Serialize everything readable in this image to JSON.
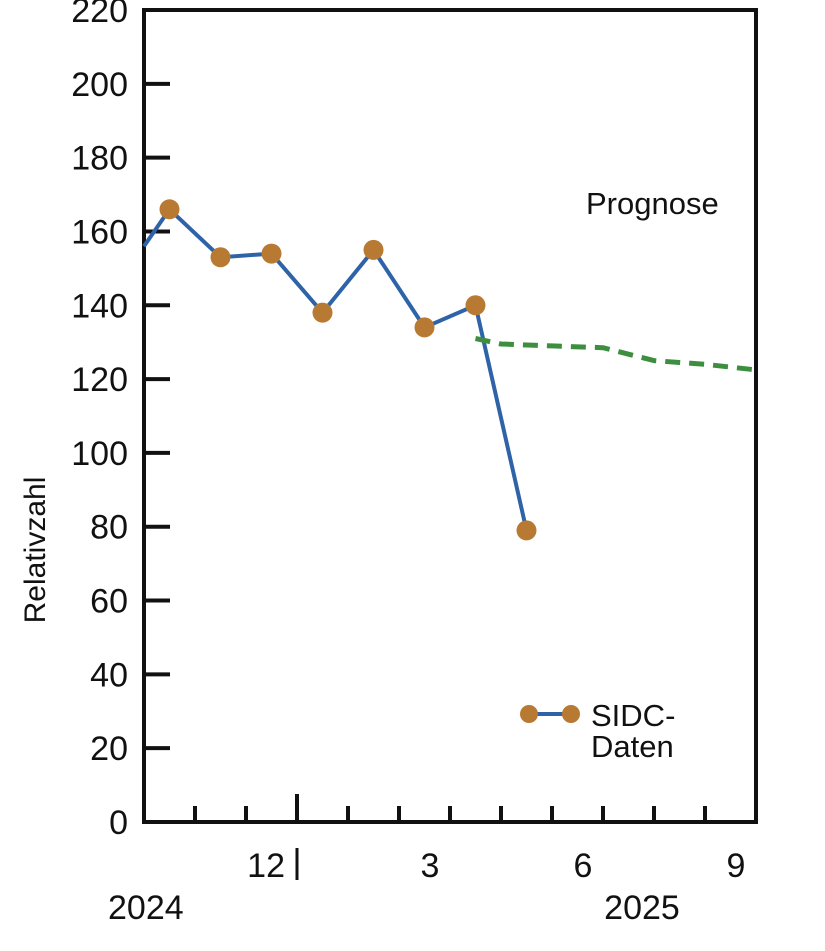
{
  "chart_data": {
    "type": "line",
    "title": "",
    "ylabel": "Relativzahl",
    "xlabel": "",
    "ylim": [
      0,
      220
    ],
    "yticks": [
      0,
      20,
      40,
      60,
      80,
      100,
      120,
      140,
      160,
      180,
      200,
      220
    ],
    "x_unit": "months since Sep 2024",
    "x_range": [
      0,
      12
    ],
    "month_tick_positions": [
      1,
      2,
      3,
      4,
      5,
      6,
      7,
      8,
      9,
      10,
      11
    ],
    "year_divider_tick": 3,
    "x_tick_labels": [
      {
        "x": 3,
        "label": "12"
      },
      {
        "x": 6,
        "label": "3"
      },
      {
        "x": 9,
        "label": "6"
      },
      {
        "x": 12,
        "label": "9"
      }
    ],
    "year_labels": [
      {
        "x": 0,
        "label": "2024"
      },
      {
        "x": 9,
        "label": "2025"
      }
    ],
    "series": [
      {
        "name": "SIDC-Daten",
        "color": "#2e63a8",
        "marker_color": "#b87a33",
        "lead_in": {
          "x": 0,
          "y": 156
        },
        "points": [
          {
            "x": 0.5,
            "y": 166
          },
          {
            "x": 1.5,
            "y": 153
          },
          {
            "x": 2.5,
            "y": 154
          },
          {
            "x": 3.5,
            "y": 138
          },
          {
            "x": 4.5,
            "y": 155
          },
          {
            "x": 5.5,
            "y": 134
          },
          {
            "x": 6.5,
            "y": 140
          },
          {
            "x": 7.5,
            "y": 79
          }
        ]
      },
      {
        "name": "Prognose",
        "color": "#3d8f3f",
        "style": "dashed",
        "points": [
          {
            "x": 6.5,
            "y": 131
          },
          {
            "x": 7.0,
            "y": 129.5
          },
          {
            "x": 8.0,
            "y": 129
          },
          {
            "x": 9.0,
            "y": 128.5
          },
          {
            "x": 10.0,
            "y": 125
          },
          {
            "x": 10.5,
            "y": 124.5
          },
          {
            "x": 11.0,
            "y": 124
          },
          {
            "x": 12.0,
            "y": 122.5
          }
        ]
      }
    ],
    "annotations": {
      "prognose_label": "Prognose",
      "legend_line1": "SIDC-",
      "legend_line2": "Daten"
    },
    "legend_position": "bottom-right"
  }
}
